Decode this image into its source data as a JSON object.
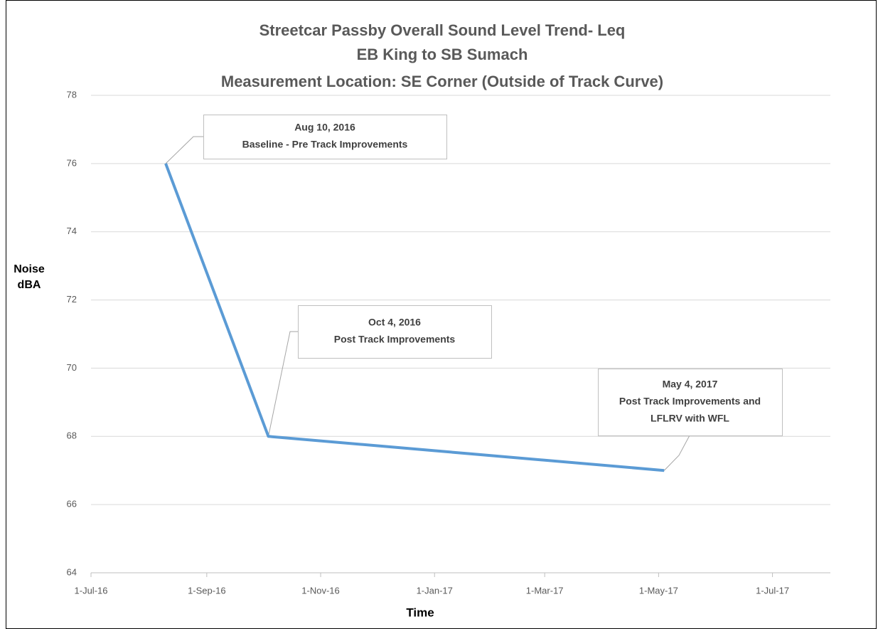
{
  "chart_data": {
    "type": "line",
    "title": [
      "Streetcar Passby Overall Sound Level Trend- Leq",
      "EB King to SB Sumach",
      "Measurement Location: SE Corner (Outside of Track Curve)"
    ],
    "xlabel": "Time",
    "ylabel": "Noise dBA",
    "x": [
      "2016-08-10",
      "2016-10-04",
      "2017-05-04"
    ],
    "series": [
      {
        "name": "Leq",
        "color": "#5b9bd5",
        "values": [
          76,
          68,
          67
        ]
      }
    ],
    "xlim": [
      "2016-07-01",
      "2017-08-01"
    ],
    "xticks": [
      {
        "value": "2016-07-01",
        "label": "1-Jul-16"
      },
      {
        "value": "2016-09-01",
        "label": "1-Sep-16"
      },
      {
        "value": "2016-11-01",
        "label": "1-Nov-16"
      },
      {
        "value": "2017-01-01",
        "label": "1-Jan-17"
      },
      {
        "value": "2017-03-01",
        "label": "1-Mar-17"
      },
      {
        "value": "2017-05-01",
        "label": "1-May-17"
      },
      {
        "value": "2017-07-01",
        "label": "1-Jul-17"
      }
    ],
    "ylim": [
      64,
      78
    ],
    "yticks": [
      64,
      66,
      68,
      70,
      72,
      74,
      76,
      78
    ],
    "grid": true,
    "annotations": [
      {
        "lines": [
          "Aug 10, 2016",
          "Baseline - Pre Track Improvements"
        ]
      },
      {
        "lines": [
          "Oct 4, 2016",
          "Post Track Improvements"
        ]
      },
      {
        "lines": [
          "May 4, 2017",
          "Post Track Improvements and",
          "LFLRV with WFL"
        ]
      }
    ]
  }
}
